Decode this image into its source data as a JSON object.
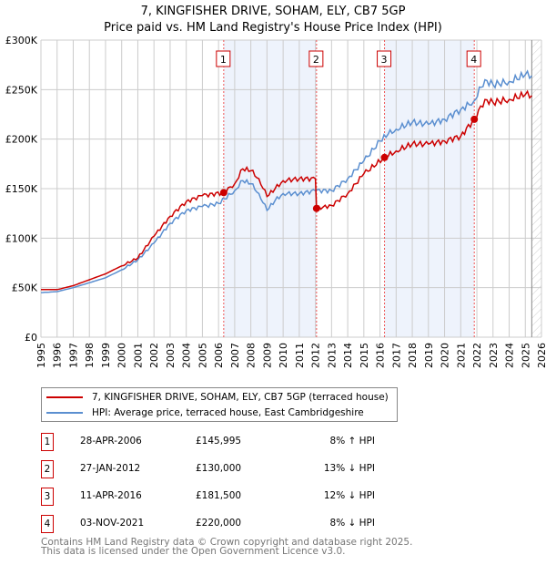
{
  "chart_data": {
    "type": "line",
    "title": "7, KINGFISHER DRIVE, SOHAM, ELY, CB7 5GP",
    "subtitle": "Price paid vs. HM Land Registry's House Price Index (HPI)",
    "xlim": [
      1995,
      2026
    ],
    "ylim": [
      0,
      300000
    ],
    "x_ticks": [
      "1995",
      "1996",
      "1997",
      "1998",
      "1999",
      "2000",
      "2001",
      "2002",
      "2003",
      "2004",
      "2005",
      "2006",
      "2007",
      "2008",
      "2009",
      "2010",
      "2011",
      "2012",
      "2013",
      "2014",
      "2015",
      "2016",
      "2017",
      "2018",
      "2019",
      "2020",
      "2021",
      "2022",
      "2023",
      "2024",
      "2025",
      "2026"
    ],
    "y_ticks": [
      {
        "v": 0,
        "label": "£0"
      },
      {
        "v": 50000,
        "label": "£50K"
      },
      {
        "v": 100000,
        "label": "£100K"
      },
      {
        "v": 150000,
        "label": "£150K"
      },
      {
        "v": 200000,
        "label": "£200K"
      },
      {
        "v": 250000,
        "label": "£250K"
      },
      {
        "v": 300000,
        "label": "£300K"
      }
    ],
    "grid": true,
    "colors": {
      "property": "#cc0000",
      "hpi": "#5b8fd0",
      "shade": "#eef3fc"
    },
    "series": [
      {
        "name": "7, KINGFISHER DRIVE, SOHAM, ELY, CB7 5GP (terraced house)",
        "points": [
          [
            1995,
            48000
          ],
          [
            1996,
            48000
          ],
          [
            1997,
            52000
          ],
          [
            1998,
            58000
          ],
          [
            1999,
            64000
          ],
          [
            2000,
            72000
          ],
          [
            2001,
            80000
          ],
          [
            2002,
            102000
          ],
          [
            2003,
            122000
          ],
          [
            2004,
            137000
          ],
          [
            2005,
            143000
          ],
          [
            2006.32,
            145995
          ],
          [
            2007,
            155000
          ],
          [
            2007.5,
            170000
          ],
          [
            2008,
            168000
          ],
          [
            2008.5,
            160000
          ],
          [
            2009,
            142000
          ],
          [
            2009.5,
            150000
          ],
          [
            2010,
            158000
          ],
          [
            2011,
            160000
          ],
          [
            2012.0,
            160000
          ],
          [
            2012.07,
            130000
          ],
          [
            2013,
            133000
          ],
          [
            2014,
            145000
          ],
          [
            2015,
            165000
          ],
          [
            2016.28,
            181500
          ],
          [
            2017,
            188000
          ],
          [
            2018,
            195000
          ],
          [
            2019,
            195000
          ],
          [
            2020,
            198000
          ],
          [
            2021,
            203000
          ],
          [
            2021.84,
            220000
          ],
          [
            2022.5,
            240000
          ],
          [
            2023,
            237000
          ],
          [
            2024,
            240000
          ],
          [
            2025,
            245000
          ],
          [
            2025.4,
            244000
          ]
        ]
      },
      {
        "name": "HPI: Average price, terraced house, East Cambridgeshire",
        "points": [
          [
            1995,
            45000
          ],
          [
            1996,
            46000
          ],
          [
            1997,
            50000
          ],
          [
            1998,
            55000
          ],
          [
            1999,
            60000
          ],
          [
            2000,
            68000
          ],
          [
            2001,
            78000
          ],
          [
            2002,
            95000
          ],
          [
            2003,
            115000
          ],
          [
            2004,
            128000
          ],
          [
            2005,
            132000
          ],
          [
            2006,
            135000
          ],
          [
            2007,
            148000
          ],
          [
            2007.5,
            158000
          ],
          [
            2008,
            155000
          ],
          [
            2008.5,
            145000
          ],
          [
            2009,
            128000
          ],
          [
            2009.5,
            138000
          ],
          [
            2010,
            145000
          ],
          [
            2011,
            145000
          ],
          [
            2012,
            148000
          ],
          [
            2013,
            148000
          ],
          [
            2014,
            160000
          ],
          [
            2015,
            178000
          ],
          [
            2016,
            198000
          ],
          [
            2016.5,
            205000
          ],
          [
            2017,
            210000
          ],
          [
            2018,
            217000
          ],
          [
            2019,
            215000
          ],
          [
            2020,
            220000
          ],
          [
            2021,
            230000
          ],
          [
            2021.8,
            238000
          ],
          [
            2022.5,
            260000
          ],
          [
            2023,
            255000
          ],
          [
            2024,
            258000
          ],
          [
            2025,
            265000
          ],
          [
            2025.4,
            264000
          ]
        ]
      }
    ],
    "sales": [
      {
        "label": "1",
        "x": 2006.32,
        "y": 145995
      },
      {
        "label": "2",
        "x": 2012.07,
        "y": 130000
      },
      {
        "label": "3",
        "x": 2016.28,
        "y": 181500
      },
      {
        "label": "4",
        "x": 2021.84,
        "y": 220000
      }
    ],
    "shaded_ranges": [
      [
        2006.32,
        2012.07
      ],
      [
        2016.28,
        2021.84
      ]
    ],
    "forecast_from": 2025.4
  },
  "legend": {
    "property": "7, KINGFISHER DRIVE, SOHAM, ELY, CB7 5GP (terraced house)",
    "hpi": "HPI: Average price, terraced house, East Cambridgeshire"
  },
  "table": [
    {
      "n": "1",
      "date": "28-APR-2006",
      "price": "£145,995",
      "hpi": "8% ↑ HPI"
    },
    {
      "n": "2",
      "date": "27-JAN-2012",
      "price": "£130,000",
      "hpi": "13% ↓ HPI"
    },
    {
      "n": "3",
      "date": "11-APR-2016",
      "price": "£181,500",
      "hpi": "12% ↓ HPI"
    },
    {
      "n": "4",
      "date": "03-NOV-2021",
      "price": "£220,000",
      "hpi": "8% ↓ HPI"
    }
  ],
  "footer": {
    "line1": "Contains HM Land Registry data © Crown copyright and database right 2025.",
    "line2": "This data is licensed under the Open Government Licence v3.0."
  }
}
